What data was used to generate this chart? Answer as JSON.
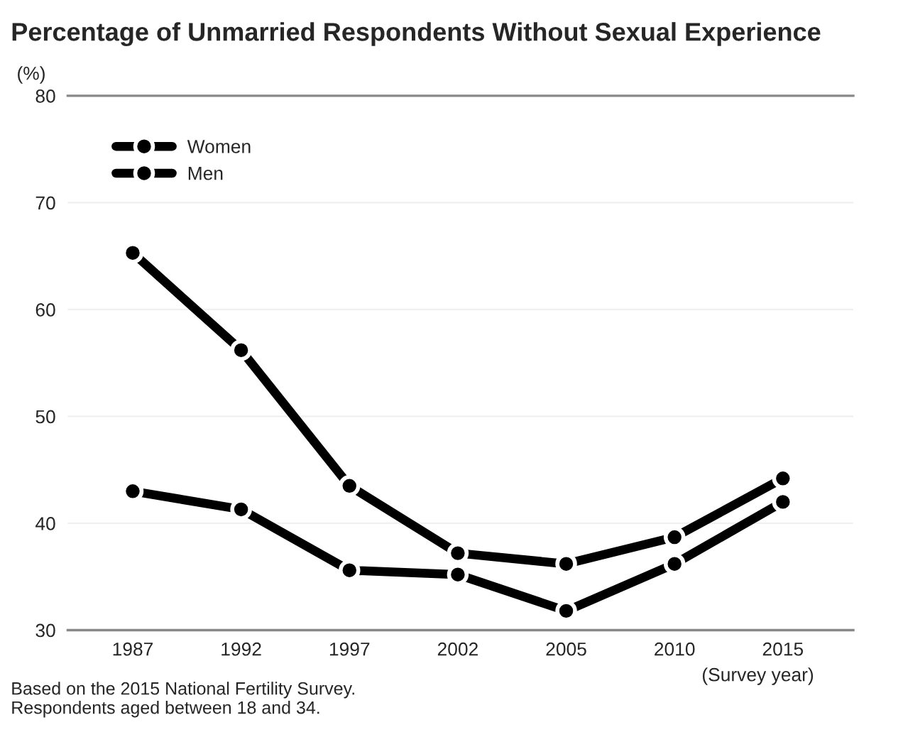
{
  "chart_data": {
    "type": "line",
    "title": "Percentage of Unmarried Respondents Without Sexual Experience",
    "ylabel": "(%)",
    "xlabel": "(Survey year)",
    "categories": [
      "1987",
      "1992",
      "1997",
      "2002",
      "2005",
      "2010",
      "2015"
    ],
    "series": [
      {
        "name": "Women",
        "color": "#000000",
        "values": [
          65.3,
          56.2,
          43.5,
          37.2,
          36.2,
          38.7,
          44.2
        ]
      },
      {
        "name": "Men",
        "color": "#000000",
        "values": [
          43.0,
          41.3,
          35.6,
          35.2,
          31.8,
          36.2,
          42.0
        ]
      }
    ],
    "ylim": [
      30,
      80
    ],
    "yticks": [
      30,
      40,
      50,
      60,
      70,
      80
    ],
    "grid": "y",
    "legend": "top left",
    "marker": "circle",
    "line_style": "solid",
    "annotations": [
      "Based on the 2015 National Fertility Survey.\nRespondents aged between 18 and 34."
    ]
  }
}
